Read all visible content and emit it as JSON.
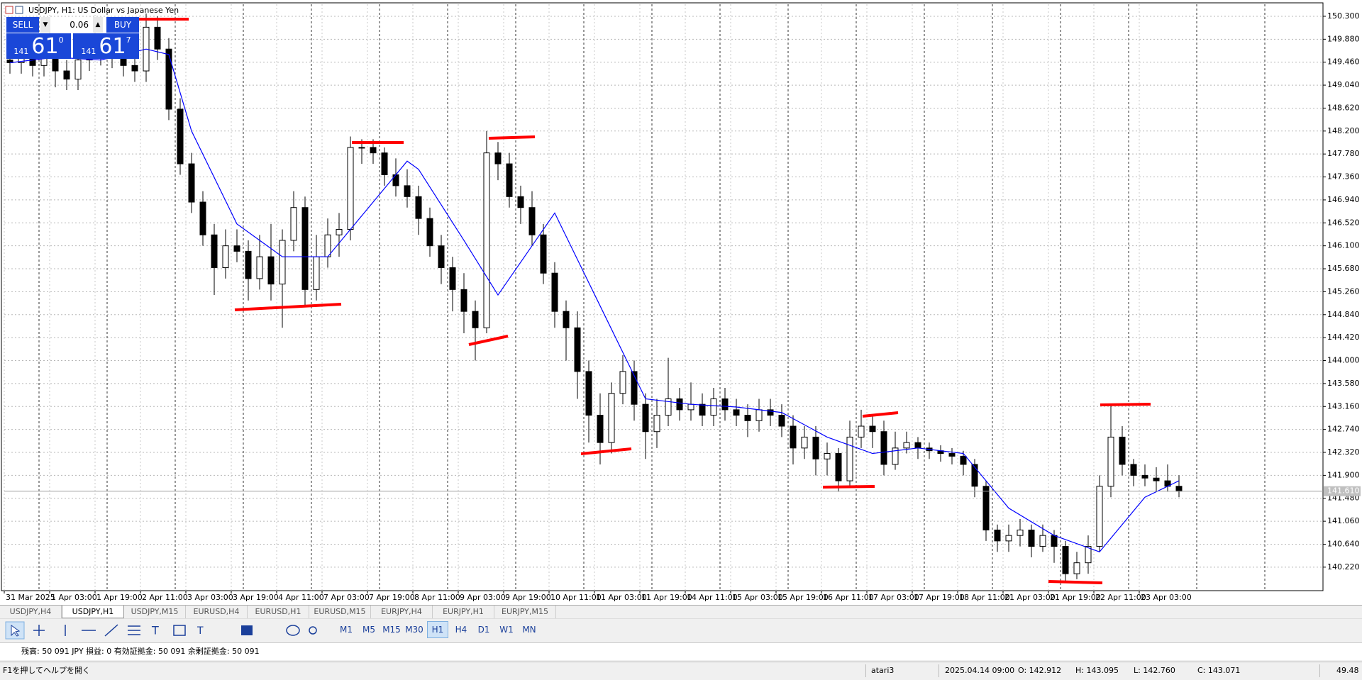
{
  "window": {
    "title": "USDJPY, H1:  US Dollar vs Japanese Yen"
  },
  "trade_panel": {
    "sell": "SELL",
    "buy": "BUY",
    "volume": "0.06",
    "bid": {
      "big": "141",
      "pips": "61",
      "point": "0"
    },
    "ask": {
      "big": "141",
      "pips": "61",
      "point": "7"
    }
  },
  "chart_data": {
    "type": "candlestick",
    "categories": [
      "31 Mar 2025",
      "1 Apr 03:00",
      "1 Apr 19:00",
      "2 Apr 11:00",
      "3 Apr 03:00",
      "3 Apr 19:00",
      "4 Apr 11:00",
      "7 Apr 03:00",
      "7 Apr 19:00",
      "8 Apr 11:00",
      "9 Apr 03:00",
      "9 Apr 19:00",
      "10 Apr 11:00",
      "11 Apr 03:00",
      "11 Apr 19:00",
      "14 Apr 11:00",
      "15 Apr 03:00",
      "15 Apr 19:00",
      "16 Apr 11:00",
      "17 Apr 03:00",
      "17 Apr 19:00",
      "18 Apr 11:00",
      "21 Apr 03:00",
      "21 Apr 19:00",
      "22 Apr 11:00",
      "23 Apr 03:00"
    ],
    "open": [
      149.5,
      149.45,
      149.55,
      149.4,
      149.6,
      149.3,
      149.15,
      149.5,
      149.6,
      149.7,
      149.55,
      149.4,
      149.3,
      150.1,
      149.7,
      148.6,
      147.6,
      146.9,
      146.3,
      145.7,
      146.1,
      146.0,
      145.5,
      145.9,
      145.4,
      146.2,
      146.8,
      145.3,
      145.9,
      146.3,
      146.4,
      147.9,
      147.9,
      147.8,
      147.4,
      147.2,
      147.0,
      146.6,
      146.1,
      145.7,
      145.3,
      144.9,
      144.6,
      147.8,
      147.6,
      147.0,
      146.8,
      146.3,
      145.6,
      144.9,
      144.6,
      143.8,
      143.0,
      142.5,
      143.4,
      143.8,
      143.2,
      142.7,
      143.0,
      143.3,
      143.1,
      143.2,
      143.0,
      143.3,
      143.1,
      143.0,
      142.9,
      143.1,
      143.0,
      142.8,
      142.4,
      142.6,
      142.2,
      142.3,
      141.8,
      142.6,
      142.8,
      142.7,
      142.1,
      142.4,
      142.5,
      142.4,
      142.35,
      142.3,
      142.25,
      142.1,
      141.7,
      140.9,
      140.7,
      140.8,
      140.9,
      140.6,
      140.8,
      140.6,
      140.1,
      140.3,
      140.6,
      141.7,
      142.6,
      142.1,
      141.9,
      141.85,
      141.8,
      141.7
    ],
    "high": [
      149.7,
      149.75,
      149.75,
      149.8,
      149.8,
      149.5,
      149.7,
      149.8,
      149.9,
      149.9,
      149.75,
      149.6,
      150.35,
      150.3,
      149.9,
      148.8,
      147.8,
      147.1,
      146.5,
      146.4,
      146.4,
      146.2,
      146.3,
      146.5,
      146.4,
      147.1,
      147.0,
      146.3,
      146.6,
      146.7,
      148.1,
      148.05,
      148.05,
      147.9,
      147.7,
      147.5,
      147.2,
      146.8,
      146.3,
      145.9,
      145.6,
      145.1,
      148.2,
      148.0,
      147.8,
      147.2,
      147.1,
      146.5,
      145.8,
      145.1,
      144.9,
      144.0,
      143.4,
      143.6,
      144.1,
      144.0,
      143.4,
      143.3,
      144.05,
      143.5,
      143.6,
      143.4,
      143.5,
      143.5,
      143.3,
      143.2,
      143.3,
      143.3,
      143.2,
      143.0,
      142.8,
      142.8,
      142.5,
      142.4,
      142.9,
      143.1,
      143.0,
      142.9,
      142.7,
      142.7,
      142.6,
      142.5,
      142.45,
      142.4,
      142.35,
      142.2,
      141.8,
      141.0,
      141.0,
      141.1,
      141.0,
      141.0,
      140.9,
      140.7,
      140.5,
      140.8,
      141.9,
      143.2,
      142.8,
      142.2,
      142.1,
      142.05,
      142.1,
      141.9
    ],
    "low": [
      149.25,
      149.25,
      149.2,
      149.2,
      149.0,
      148.95,
      148.95,
      149.3,
      149.4,
      149.35,
      149.2,
      149.1,
      149.1,
      149.5,
      148.4,
      147.4,
      146.7,
      146.1,
      145.2,
      145.5,
      145.8,
      145.1,
      145.3,
      145.1,
      144.6,
      146.0,
      145.0,
      145.1,
      145.7,
      145.9,
      146.2,
      147.6,
      147.6,
      147.2,
      147.0,
      146.8,
      146.3,
      145.9,
      145.4,
      144.9,
      144.5,
      144.0,
      144.5,
      147.3,
      146.8,
      146.5,
      146.1,
      145.4,
      144.6,
      144.0,
      143.3,
      142.5,
      142.1,
      142.3,
      143.2,
      142.9,
      142.2,
      142.4,
      142.8,
      142.9,
      142.9,
      142.8,
      142.8,
      142.9,
      142.8,
      142.6,
      142.7,
      142.8,
      142.6,
      142.1,
      142.2,
      141.9,
      141.9,
      141.6,
      141.7,
      142.4,
      142.4,
      141.9,
      142.0,
      142.3,
      142.2,
      142.2,
      142.15,
      142.1,
      141.9,
      141.5,
      140.7,
      140.5,
      140.5,
      140.6,
      140.4,
      140.5,
      140.3,
      139.95,
      140.0,
      140.1,
      140.5,
      141.5,
      141.9,
      141.7,
      141.7,
      141.6,
      141.6,
      141.5
    ],
    "close": [
      149.45,
      149.55,
      149.4,
      149.6,
      149.3,
      149.15,
      149.5,
      149.6,
      149.7,
      149.55,
      149.4,
      149.3,
      150.1,
      149.7,
      148.6,
      147.6,
      146.9,
      146.3,
      145.7,
      146.1,
      146.0,
      145.5,
      145.9,
      145.4,
      146.2,
      146.8,
      145.3,
      145.9,
      146.3,
      146.4,
      147.9,
      147.9,
      147.8,
      147.4,
      147.2,
      147.0,
      146.6,
      146.1,
      145.7,
      145.3,
      144.9,
      144.6,
      147.8,
      147.6,
      147.0,
      146.8,
      146.3,
      145.6,
      144.9,
      144.6,
      143.8,
      143.0,
      142.5,
      143.4,
      143.8,
      143.2,
      142.7,
      143.0,
      143.3,
      143.1,
      143.2,
      143.0,
      143.3,
      143.1,
      143.0,
      142.9,
      143.1,
      143.0,
      142.8,
      142.4,
      142.6,
      142.2,
      142.3,
      141.8,
      142.6,
      142.8,
      142.7,
      142.1,
      142.4,
      142.5,
      142.4,
      142.35,
      142.3,
      142.25,
      142.1,
      141.7,
      140.9,
      140.7,
      140.8,
      140.9,
      140.6,
      140.8,
      140.6,
      140.1,
      140.3,
      140.6,
      141.7,
      142.6,
      142.1,
      141.9,
      141.85,
      141.8,
      141.7,
      141.61
    ],
    "up_color": "#ffffff",
    "down_color": "#000000",
    "candle_outline": "#000000",
    "ma": {
      "color": "#0000ff",
      "x": [
        0,
        4,
        8,
        12,
        14,
        16,
        20,
        24,
        28,
        32,
        35,
        36,
        40,
        43,
        44,
        48,
        52,
        56,
        60,
        64,
        68,
        72,
        76,
        80,
        84,
        88,
        92,
        96,
        100,
        103
      ],
      "values": [
        149.45,
        149.55,
        149.5,
        149.7,
        149.6,
        148.2,
        146.5,
        145.9,
        145.9,
        146.9,
        147.65,
        147.5,
        146.2,
        145.2,
        145.5,
        146.7,
        145.0,
        143.3,
        143.2,
        143.15,
        143.05,
        142.6,
        142.3,
        142.4,
        142.3,
        141.3,
        140.8,
        140.5,
        141.5,
        141.8
      ]
    },
    "last_price": {
      "value": 141.61,
      "label": "141.610"
    },
    "ylim": [
      139.79,
      150.52
    ],
    "yticks": [
      {
        "value": 150.3,
        "label": "150.300"
      },
      {
        "value": 149.88,
        "label": "149.880"
      },
      {
        "value": 149.46,
        "label": "149.460"
      },
      {
        "value": 149.04,
        "label": "149.040"
      },
      {
        "value": 148.62,
        "label": "148.620"
      },
      {
        "value": 148.2,
        "label": "148.200"
      },
      {
        "value": 147.78,
        "label": "147.780"
      },
      {
        "value": 147.36,
        "label": "147.360"
      },
      {
        "value": 146.94,
        "label": "146.940"
      },
      {
        "value": 146.52,
        "label": "146.520"
      },
      {
        "value": 146.1,
        "label": "146.100"
      },
      {
        "value": 145.68,
        "label": "145.680"
      },
      {
        "value": 145.26,
        "label": "145.260"
      },
      {
        "value": 144.84,
        "label": "144.840"
      },
      {
        "value": 144.42,
        "label": "144.420"
      },
      {
        "value": 144.0,
        "label": "144.000"
      },
      {
        "value": 143.58,
        "label": "143.580"
      },
      {
        "value": 143.16,
        "label": "143.160"
      },
      {
        "value": 142.74,
        "label": "142.740"
      },
      {
        "value": 142.32,
        "label": "142.320"
      },
      {
        "value": 141.9,
        "label": "141.900"
      },
      {
        "value": 141.48,
        "label": "141.480"
      },
      {
        "value": 141.06,
        "label": "141.060"
      },
      {
        "value": 140.64,
        "label": "140.640"
      },
      {
        "value": 140.22,
        "label": "140.220"
      }
    ],
    "grid": true
  },
  "tabs": [
    "USDJPY,H4",
    "USDJPY,H1",
    "USDJPY,M15",
    "EURUSD,H4",
    "EURUSD,H1",
    "EURUSD,M15",
    "EURJPY,H4",
    "EURJPY,H1",
    "EURJPY,M15"
  ],
  "active_tab": 1,
  "timeframes": [
    "M1",
    "M5",
    "M15",
    "M30",
    "H1",
    "H4",
    "D1",
    "W1",
    "MN"
  ],
  "active_timeframe": 4,
  "account_line": "残高: 50 091 JPY   損益: 0   有効証拠金: 50 091   余剰証拠金: 50 091",
  "status": {
    "help": "F1を押してヘルプを開く",
    "profile": "atari3",
    "time": "2025.04.14 09:00",
    "o": "O: 142.912",
    "h": "H: 143.095",
    "l": "L: 142.760",
    "c": "C: 143.071",
    "ping": "49.48"
  }
}
